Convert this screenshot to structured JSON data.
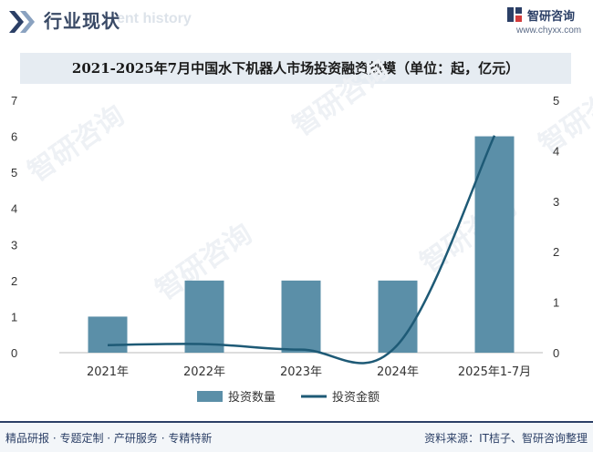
{
  "header": {
    "title": "行业现状",
    "ghost_text": "ent history",
    "brand_name": "智研咨询",
    "brand_url": "www.chyxx.com"
  },
  "watermark": {
    "text": "智研咨询"
  },
  "footer": {
    "left_text": "精品研报 · 专题定制 · 产研服务 · 专精特新",
    "right_text": "资料来源：IT桔子、智研咨询整理"
  },
  "colors": {
    "bar": "#5b8fa8",
    "line": "#1e5a76",
    "navy": "#2b3f66"
  },
  "chart_data": {
    "type": "bar",
    "title": "2021-2025年7月中国水下机器人市场投资融资规模（单位：起，亿元）",
    "categories": [
      "2021年",
      "2022年",
      "2023年",
      "2024年",
      "2025年1-7月"
    ],
    "series": [
      {
        "name": "投资数量",
        "type": "bar",
        "axis": "left",
        "values": [
          1,
          2,
          2,
          2,
          6
        ]
      },
      {
        "name": "投资金额",
        "type": "line",
        "axis": "right",
        "values": [
          0.15,
          0.17,
          0.06,
          0.16,
          4.3
        ]
      }
    ],
    "y_left": {
      "min": 0,
      "max": 7,
      "ticks": [
        "0",
        "1",
        "2",
        "3",
        "4",
        "5",
        "6",
        "7"
      ]
    },
    "y_right": {
      "min": 0,
      "max": 5,
      "ticks": [
        "0",
        "1",
        "2",
        "3",
        "4",
        "5"
      ]
    },
    "legend_position": "bottom-center",
    "grid": false
  }
}
